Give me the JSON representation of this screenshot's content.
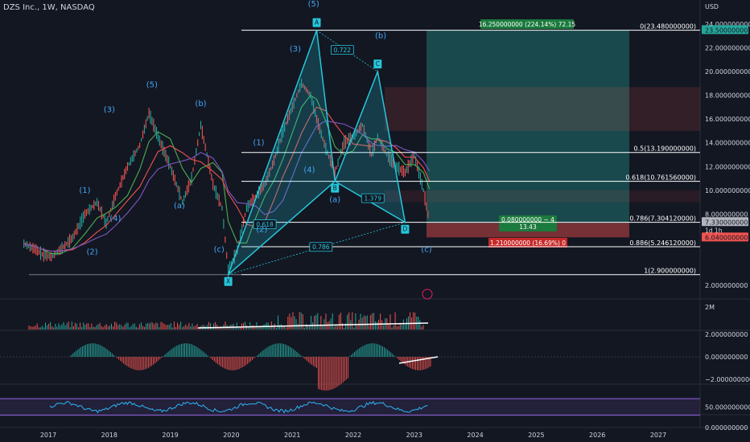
{
  "header": {
    "title": "DZS Inc., 1W, NASDAQ"
  },
  "price_axis": {
    "currency": "USD",
    "ticks": [
      "24.000000000",
      "22.000000000",
      "20.000000000",
      "18.000000000",
      "16.000000000",
      "14.000000000",
      "12.000000000",
      "10.000000000",
      "8.000000000",
      "7.250000000",
      "2.000000000"
    ],
    "tick_values": [
      24,
      22,
      20,
      18,
      16,
      14,
      12,
      10,
      8,
      7.25,
      2
    ],
    "badges": [
      {
        "text": "23.500000000",
        "value": 23.5,
        "color": "#26a69a"
      },
      {
        "text": "7.330000000",
        "value": 7.33,
        "color": "#b2b5be",
        "sub": "1d 1h"
      },
      {
        "text": "6.040000000",
        "value": 6.04,
        "color": "#ef5350"
      }
    ]
  },
  "time_axis": {
    "labels": [
      "2017",
      "2018",
      "2019",
      "2020",
      "2021",
      "2022",
      "2023",
      "2024",
      "2025",
      "2026",
      "2027"
    ]
  },
  "fib_levels": [
    {
      "label": "0(23.480000000)",
      "value": 23.48
    },
    {
      "label": "0.5(13.190000000)",
      "value": 13.19
    },
    {
      "label": "0.618(10.761560000)",
      "value": 10.76156
    },
    {
      "label": "0.786(7.304120000)",
      "value": 7.30412
    },
    {
      "label": "0.886(5.246120000)",
      "value": 5.24612
    },
    {
      "label": "1(2.900000000)",
      "value": 2.9
    }
  ],
  "pattern": {
    "points": [
      {
        "name": "X",
        "year": 2019.95,
        "price": 2.9
      },
      {
        "name": "A",
        "year": 2021.4,
        "price": 23.48
      },
      {
        "name": "B",
        "year": 2021.7,
        "price": 10.76
      },
      {
        "name": "C",
        "year": 2022.4,
        "price": 20.0
      },
      {
        "name": "D",
        "year": 2022.85,
        "price": 7.3
      }
    ],
    "ratios": [
      {
        "text": "0.722",
        "year": 2021.82,
        "price": 21.8
      },
      {
        "text": "0.618",
        "year": 2020.55,
        "price": 7.1
      },
      {
        "text": "1.379",
        "year": 2022.32,
        "price": 9.3
      },
      {
        "text": "0.786",
        "year": 2021.47,
        "price": 5.2
      }
    ]
  },
  "wave_labels": [
    {
      "text": "(1)",
      "year": 2017.6,
      "price": 9.8
    },
    {
      "text": "(2)",
      "year": 2017.72,
      "price": 4.6
    },
    {
      "text": "(3)",
      "year": 2018.0,
      "price": 16.6
    },
    {
      "text": "(4)",
      "year": 2018.1,
      "price": 7.4
    },
    {
      "text": "(5)",
      "year": 2018.7,
      "price": 18.7
    },
    {
      "text": "(a)",
      "year": 2019.15,
      "price": 8.5
    },
    {
      "text": "(b)",
      "year": 2019.5,
      "price": 17.1
    },
    {
      "text": "(c)",
      "year": 2019.8,
      "price": 4.8
    },
    {
      "text": "(1)",
      "year": 2020.45,
      "price": 13.8
    },
    {
      "text": "(2)",
      "year": 2020.5,
      "price": 6.5
    },
    {
      "text": "(3)",
      "year": 2021.05,
      "price": 21.7
    },
    {
      "text": "(4)",
      "year": 2021.28,
      "price": 11.5
    },
    {
      "text": "(5)",
      "year": 2021.35,
      "price": 25.5
    },
    {
      "text": "(a)",
      "year": 2021.7,
      "price": 9.0
    },
    {
      "text": "(b)",
      "year": 2022.45,
      "price": 22.8
    },
    {
      "text": "(c)",
      "year": 2023.2,
      "price": 4.8
    }
  ],
  "position": {
    "profit_label": "16.250000000 (224.14%) 72.15",
    "mid_line1": "0.080000000 ~ 4",
    "mid_line2": "13.43",
    "loss_label": "1.210000000 (16.69%) 0",
    "entry": 7.25,
    "target": 23.5,
    "stop": 6.04
  },
  "volume_pane": {
    "axis_label": "2M"
  },
  "macd_pane": {
    "ticks": [
      "2.000000000",
      "0.000000000",
      "−2.000000000"
    ],
    "tick_values": [
      2,
      0,
      -2
    ]
  },
  "rsi_pane": {
    "ticks": [
      "50.000000000",
      "0.000000000"
    ],
    "tick_values": [
      50,
      0
    ]
  },
  "colors": {
    "bg": "#131722",
    "fib": "#ffffff",
    "pattern": "#26c6da",
    "wave": "#42a5f5",
    "profit": "#26a69a",
    "loss": "#ef5350"
  },
  "chart_data": {
    "type": "line",
    "title": "DZS Inc., 1W, NASDAQ",
    "xlabel": "",
    "ylabel": "",
    "ylim": [
      1.2,
      25.6
    ],
    "x": [
      2016.6,
      2016.8,
      2016.9,
      2017.05,
      2017.2,
      2017.4,
      2017.6,
      2017.8,
      2017.95,
      2018.1,
      2018.3,
      2018.5,
      2018.65,
      2018.8,
      2019.0,
      2019.2,
      2019.35,
      2019.5,
      2019.7,
      2019.85,
      2019.95,
      2020.1,
      2020.25,
      2020.4,
      2020.55,
      2020.7,
      2020.85,
      2021.0,
      2021.15,
      2021.3,
      2021.4,
      2021.55,
      2021.7,
      2021.85,
      2022.0,
      2022.15,
      2022.3,
      2022.4,
      2022.55,
      2022.7,
      2022.85,
      2023.0,
      2023.15,
      2023.25
    ],
    "series": [
      {
        "name": "price",
        "values": [
          5.5,
          5.0,
          4.6,
          4.4,
          5.0,
          6.0,
          8.0,
          9.0,
          7.2,
          9.5,
          12.0,
          13.8,
          16.5,
          14.5,
          12.0,
          9.0,
          11.0,
          15.5,
          10.5,
          8.5,
          3.2,
          5.0,
          8.5,
          9.5,
          10.5,
          12.5,
          15.0,
          17.0,
          19.0,
          18.0,
          16.0,
          13.5,
          11.5,
          14.0,
          14.5,
          15.5,
          13.0,
          14.5,
          13.0,
          12.0,
          11.5,
          13.0,
          10.0,
          7.3
        ]
      }
    ]
  }
}
